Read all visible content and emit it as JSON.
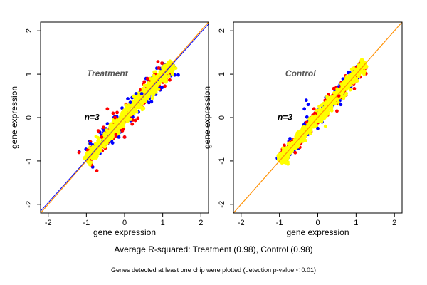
{
  "chart_data": [
    {
      "type": "scatter",
      "title": "Treatment",
      "annotation": "n=3",
      "xlabel": "gene expression",
      "ylabel": "gene expression",
      "xlim": [
        -2.2,
        2.2
      ],
      "ylim": [
        -2.2,
        2.2
      ],
      "xticks": [
        -2,
        -1,
        0,
        1,
        2
      ],
      "yticks": [
        -2,
        -1,
        0,
        1,
        2
      ],
      "reference_lines": [
        {
          "slope": 1,
          "intercept": 0,
          "color": "#ff0000"
        },
        {
          "slope": 0.98,
          "intercept": 0,
          "color": "#0000ff"
        },
        {
          "slope": 1,
          "intercept": 0,
          "color": "#ffa500"
        }
      ],
      "cloud": {
        "x_min": -1.0,
        "x_max": 1.25,
        "spread_yellow": 0.09,
        "spread_red": 0.13,
        "spread_blue": 0.17
      },
      "colors": {
        "yellow": "#ffff00",
        "red": "#ff0000",
        "blue": "#0000ff"
      },
      "outliers": [
        {
          "x": -0.3,
          "y": 0.1,
          "c": "#ff0000"
        },
        {
          "x": -0.9,
          "y": -0.6,
          "c": "#0000ff"
        },
        {
          "x": 0.3,
          "y": 0.55,
          "c": "#0000ff"
        },
        {
          "x": 0.45,
          "y": 0.55,
          "c": "#0000ff"
        },
        {
          "x": -0.15,
          "y": -0.45,
          "c": "#0000ff"
        },
        {
          "x": 0.0,
          "y": -0.45,
          "c": "#ff0000"
        },
        {
          "x": -0.6,
          "y": -0.45,
          "c": "#ff0000"
        },
        {
          "x": 0.6,
          "y": 0.9,
          "c": "#ff0000"
        },
        {
          "x": 0.2,
          "y": -0.15,
          "c": "#ff0000"
        },
        {
          "x": -0.45,
          "y": 0.2,
          "c": "#ff0000"
        },
        {
          "x": -0.25,
          "y": 0.0,
          "c": "#ff0000"
        },
        {
          "x": 0.15,
          "y": 0.35,
          "c": "#0000ff"
        }
      ]
    },
    {
      "type": "scatter",
      "title": "Control",
      "annotation": "n=3",
      "xlabel": "gene expression",
      "ylabel": "gene expression",
      "xlim": [
        -2.2,
        2.2
      ],
      "ylim": [
        -2.2,
        2.2
      ],
      "xticks": [
        -2,
        -1,
        0,
        1,
        2
      ],
      "yticks": [
        -2,
        -1,
        0,
        1,
        2
      ],
      "reference_lines": [
        {
          "slope": 1,
          "intercept": 0,
          "color": "#ff0000"
        },
        {
          "slope": 1,
          "intercept": 0,
          "color": "#ffa500"
        }
      ],
      "cloud": {
        "x_min": -1.0,
        "x_max": 1.25,
        "spread_yellow": 0.08,
        "spread_red": 0.1,
        "spread_blue": 0.12
      },
      "colors": {
        "yellow": "#ffff00",
        "red": "#ff0000",
        "blue": "#0000ff"
      },
      "outliers": [
        {
          "x": -0.3,
          "y": 0.4,
          "c": "#0000ff"
        },
        {
          "x": -0.25,
          "y": 0.3,
          "c": "#0000ff"
        },
        {
          "x": -0.35,
          "y": 0.2,
          "c": "#0000ff"
        },
        {
          "x": 0.25,
          "y": 0.45,
          "c": "#ffff00"
        },
        {
          "x": 0.55,
          "y": 0.5,
          "c": "#ff0000"
        },
        {
          "x": 0.0,
          "y": -0.25,
          "c": "#0000ff"
        },
        {
          "x": 0.2,
          "y": -0.2,
          "c": "#ffff00"
        },
        {
          "x": 0.5,
          "y": 0.15,
          "c": "#ff0000"
        },
        {
          "x": -0.1,
          "y": 0.2,
          "c": "#ff0000"
        },
        {
          "x": 0.6,
          "y": 0.3,
          "c": "#0000ff"
        }
      ]
    }
  ],
  "captions": {
    "main": "Average R-squared: Treatment (0.98), Control (0.98)",
    "note": "Genes detected at least one chip were plotted (detection p-value < 0.01)"
  }
}
